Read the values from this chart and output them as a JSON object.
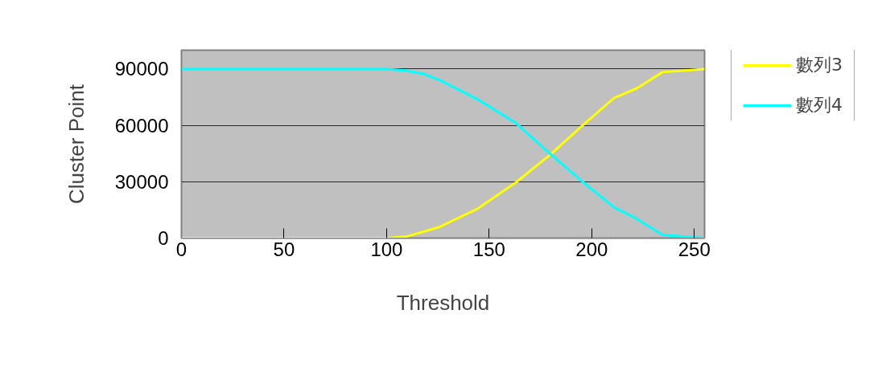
{
  "chart_data": {
    "type": "line",
    "xlabel": "Threshold",
    "ylabel": "Cluster Point",
    "x": [
      0,
      50,
      100,
      110,
      118,
      126,
      144,
      163,
      180,
      196,
      211,
      222,
      234.5,
      255
    ],
    "series": [
      {
        "name": "數列3",
        "color": "#ffff00",
        "values": [
          0,
          0,
          0,
          900,
          3400,
          6000,
          15400,
          29600,
          44600,
          60400,
          74600,
          79700,
          88300,
          90000
        ]
      },
      {
        "name": "數列4",
        "color": "#00ffff",
        "values": [
          90000,
          90000,
          90000,
          89100,
          87400,
          84000,
          74100,
          61300,
          44600,
          29600,
          16300,
          10300,
          1700,
          0
        ]
      }
    ],
    "xlim": [
      0,
      255
    ],
    "xticks": [
      0,
      50,
      100,
      150,
      200,
      250
    ],
    "ylim": [
      0,
      100000
    ],
    "yticks": [
      0,
      30000,
      60000,
      90000
    ],
    "grid": "y",
    "legend": "right",
    "marker": "none",
    "line_style": "solid"
  }
}
